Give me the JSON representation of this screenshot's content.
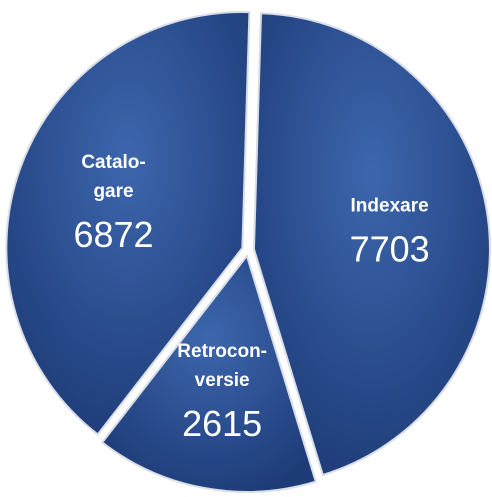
{
  "chart_data": {
    "type": "pie",
    "categories": [
      "Indexare",
      "Retrocon-\nversie",
      "Catalo-\ngare"
    ],
    "values": [
      7703,
      2615,
      6872
    ],
    "color": "#2a4f93"
  }
}
